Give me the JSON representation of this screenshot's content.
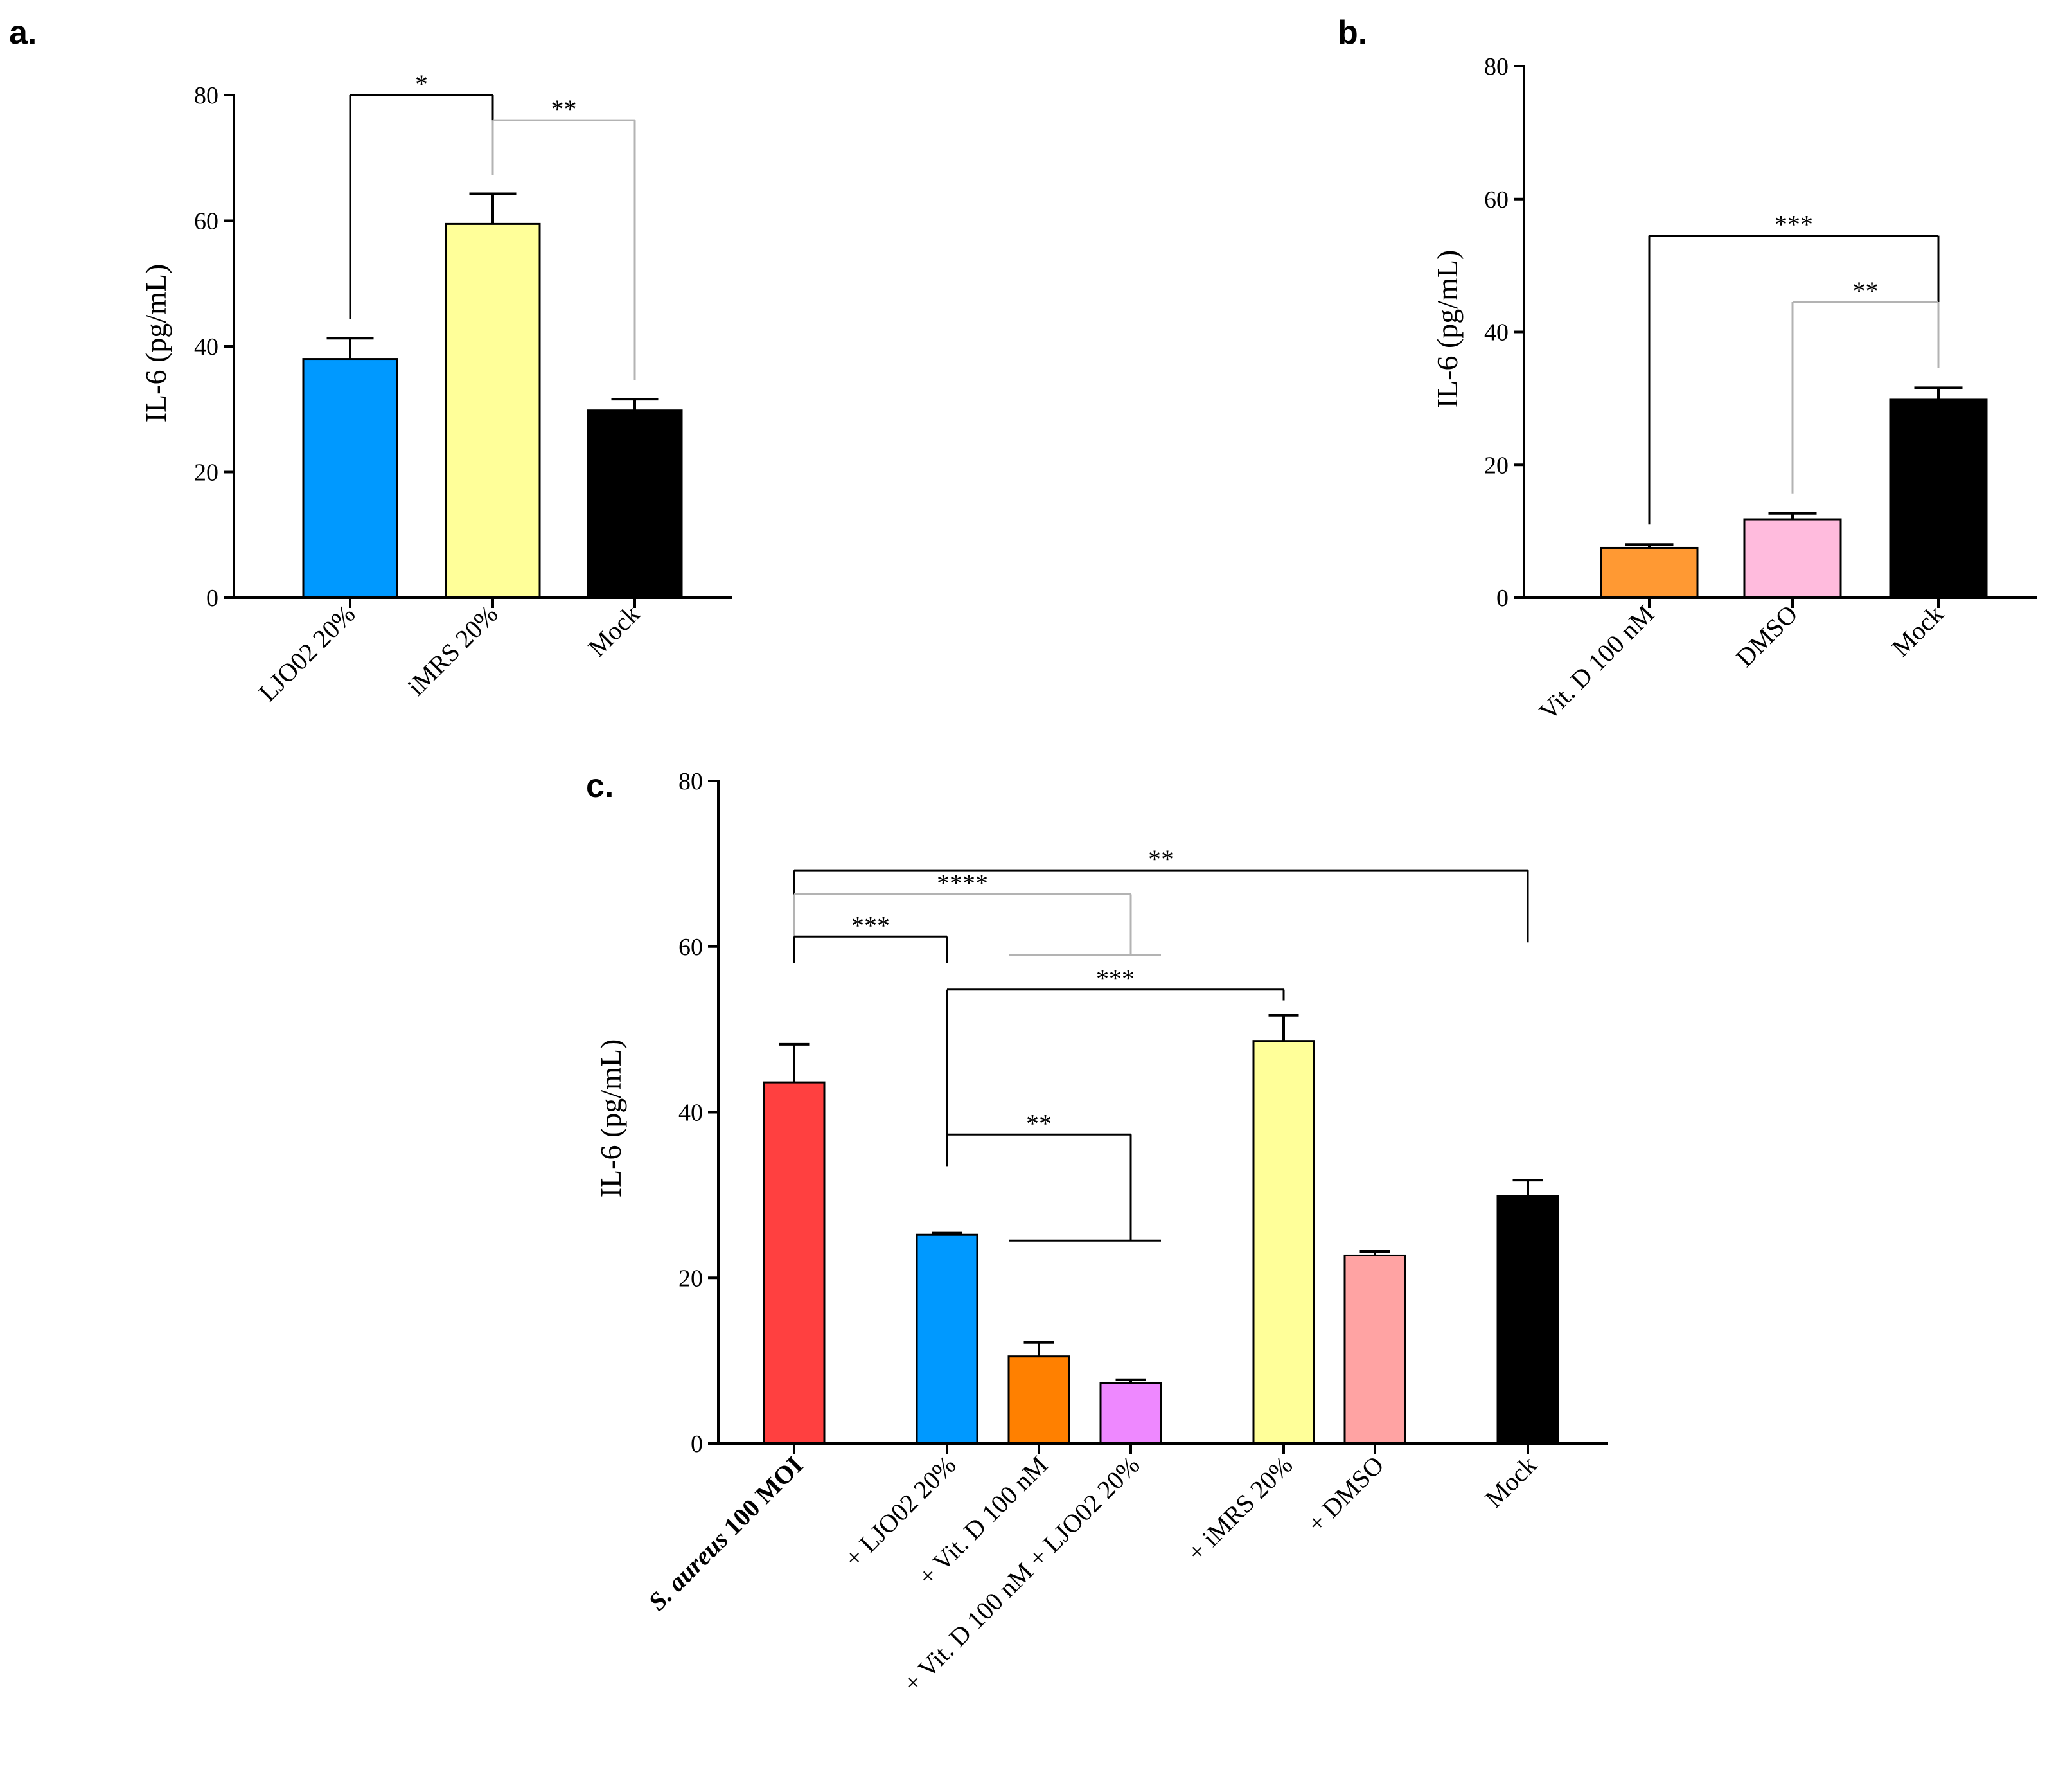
{
  "chart_data": [
    {
      "type": "bar",
      "panel": "a.",
      "ylabel": "IL-6  (pg/mL)",
      "ylim": [
        0,
        80
      ],
      "yticks": [
        "0",
        "20",
        "40",
        "60",
        "80"
      ],
      "categories": [
        "LJO02 20%",
        "iMRS 20%",
        "Mock"
      ],
      "values": [
        38,
        59.5,
        29.8
      ],
      "errors": [
        3.3,
        4.8,
        1.8
      ],
      "colors": [
        "#0099ff",
        "#ffff99",
        "#000000"
      ],
      "comparisons": [
        {
          "from": 0,
          "to": 1,
          "label": "*",
          "level": 80,
          "color": "#000000"
        },
        {
          "from": 1,
          "to": 2,
          "label": "**",
          "level": 76,
          "color": "#b3b3b3"
        }
      ]
    },
    {
      "type": "bar",
      "panel": "b.",
      "ylabel": "IL-6  (pg/mL)",
      "ylim": [
        0,
        80
      ],
      "yticks": [
        "0",
        "20",
        "40",
        "60",
        "80"
      ],
      "categories": [
        "Vit. D 100 nM",
        "DMSO",
        "Mock"
      ],
      "values": [
        7.5,
        11.8,
        29.8
      ],
      "errors": [
        0.5,
        0.9,
        1.8
      ],
      "colors": [
        "#ff9933",
        "#ffbbdd",
        "#000000"
      ],
      "comparisons": [
        {
          "from": 0,
          "to": 2,
          "label": "***",
          "level": 54.5,
          "color": "#000000"
        },
        {
          "from": 1,
          "to": 2,
          "label": "**",
          "level": 44.5,
          "color": "#b3b3b3"
        }
      ]
    },
    {
      "type": "bar",
      "panel": "c.",
      "ylabel": "IL-6  (pg/mL)",
      "ylim": [
        0,
        80
      ],
      "yticks": [
        "0",
        "20",
        "40",
        "60",
        "80"
      ],
      "categories": [
        "S. aureus 100 MOI",
        "+ LJO02 20%",
        "+ Vit. D 100 nM",
        "+ Vit. D 100 nM + LJO02 20%",
        "+ iMRS 20%",
        "+ DMSO",
        "Mock"
      ],
      "category_prefix_italic": "S. aureus",
      "category_suffix_bold": " 100 MOI",
      "values": [
        43.6,
        25.2,
        10.5,
        7.3,
        48.6,
        22.7,
        29.9
      ],
      "errors": [
        4.6,
        0.2,
        1.7,
        0.4,
        3.1,
        0.5,
        1.9
      ],
      "colors": [
        "#ff4040",
        "#0099ff",
        "#ff8000",
        "#ee88ff",
        "#ffff99",
        "#ffa3a3",
        "#000000"
      ],
      "comparisons": [
        {
          "label": "**",
          "color": "#000000",
          "left": 0,
          "right": 6,
          "level": 69.2,
          "leftDrop": 61,
          "rightDrop": 60.5
        },
        {
          "label": "****",
          "color": "#b3b3b3",
          "left": 0,
          "right": 3,
          "level": 66.3,
          "leftDrop": 61,
          "rightDrop": 59,
          "rightFork": true
        },
        {
          "label": "***",
          "color": "#000000",
          "left": 0,
          "right": 1,
          "level": 61.2,
          "leftDrop": 58,
          "rightDrop": 58
        },
        {
          "label": "***",
          "color": "#000000",
          "left": 1,
          "right": 4,
          "level": 54.8,
          "leftDrop": 33.5,
          "rightDrop": 53.5
        },
        {
          "label": "**",
          "color": "#000000",
          "left": 1,
          "right": 3,
          "level": 37.3,
          "leftDrop": 33.5,
          "rightDrop": 24.5,
          "rightFork": true
        }
      ]
    }
  ]
}
